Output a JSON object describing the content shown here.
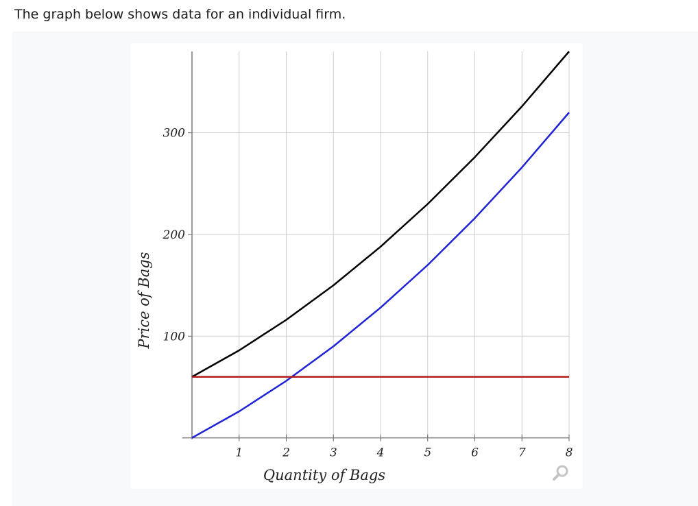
{
  "heading": "The graph below shows data for an individual firm.",
  "icons": {
    "zoom": "magnifier-icon"
  },
  "chart_data": {
    "type": "line",
    "title": "",
    "xlabel": "Quantity of Bags",
    "ylabel": "Price of Bags",
    "xlim": [
      0,
      8
    ],
    "ylim": [
      -5,
      380
    ],
    "x_ticks": [
      1,
      2,
      3,
      4,
      5,
      6,
      7,
      8
    ],
    "y_ticks": [
      100,
      200,
      300
    ],
    "grid": true,
    "series": [
      {
        "color": "#000000",
        "x": [
          0,
          1,
          2,
          3,
          4,
          5,
          6,
          7,
          8
        ],
        "y": [
          60,
          86,
          116,
          150,
          188,
          230,
          276,
          326,
          380
        ]
      },
      {
        "color": "#1f22d6",
        "x": [
          0,
          1,
          2,
          3,
          4,
          5,
          6,
          7,
          8
        ],
        "y": [
          0,
          26,
          56,
          90,
          128,
          170,
          216,
          266,
          320
        ]
      },
      {
        "color": "#b51a1a",
        "x": [
          0,
          8
        ],
        "y": [
          60,
          60
        ]
      }
    ]
  }
}
